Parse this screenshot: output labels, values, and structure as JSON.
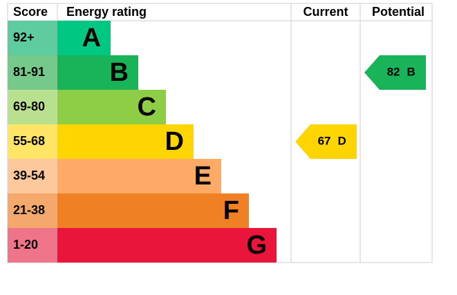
{
  "header": {
    "score": "Score",
    "rating": "Energy rating",
    "current": "Current",
    "potential": "Potential"
  },
  "bands": [
    {
      "score": "92+",
      "letter": "A",
      "color": "#00c781",
      "score_color": "#5fcca0"
    },
    {
      "score": "81-91",
      "letter": "B",
      "color": "#19b459",
      "score_color": "#74c98b"
    },
    {
      "score": "69-80",
      "letter": "C",
      "color": "#8dce46",
      "score_color": "#b9e08e"
    },
    {
      "score": "55-68",
      "letter": "D",
      "color": "#ffd500",
      "score_color": "#ffe466"
    },
    {
      "score": "39-54",
      "letter": "E",
      "color": "#fcaa65",
      "score_color": "#fdc89c"
    },
    {
      "score": "21-38",
      "letter": "F",
      "color": "#ef8023",
      "score_color": "#f4a86c"
    },
    {
      "score": "1-20",
      "letter": "G",
      "color": "#e9153b",
      "score_color": "#f07489"
    }
  ],
  "current": {
    "value": 67,
    "letter": "D"
  },
  "potential": {
    "value": 82,
    "letter": "B"
  }
}
